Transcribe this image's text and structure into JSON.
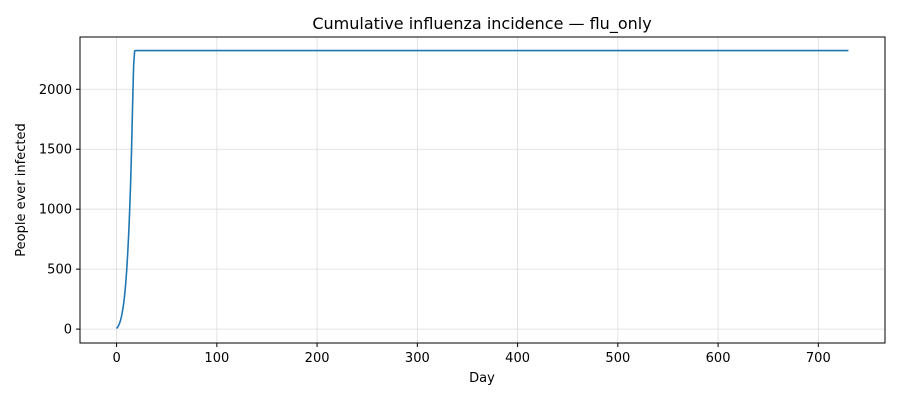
{
  "chart_data": {
    "type": "line",
    "title": "Cumulative influenza incidence — flu_only",
    "xlabel": "Day",
    "ylabel": "People ever infected",
    "xlim": [
      -36.5,
      766.5
    ],
    "ylim": [
      -116,
      2436
    ],
    "xticks": [
      0,
      100,
      200,
      300,
      400,
      500,
      600,
      700
    ],
    "yticks": [
      0,
      500,
      1000,
      1500,
      2000
    ],
    "grid": true,
    "legend": "none",
    "series": [
      {
        "color": "#1f77b4",
        "x": [
          0,
          1,
          2,
          3,
          4,
          5,
          6,
          7,
          8,
          9,
          10,
          11,
          12,
          13,
          14,
          15,
          16,
          17,
          18,
          19,
          20,
          100,
          200,
          300,
          400,
          500,
          600,
          700,
          730
        ],
        "y": [
          5,
          15,
          30,
          50,
          75,
          110,
          155,
          210,
          280,
          370,
          480,
          620,
          780,
          980,
          1220,
          1520,
          1880,
          2200,
          2320,
          2323,
          2323,
          2323,
          2323,
          2323,
          2323,
          2323,
          2323,
          2323,
          2323
        ]
      }
    ]
  }
}
